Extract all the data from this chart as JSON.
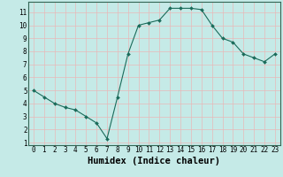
{
  "x": [
    0,
    1,
    2,
    3,
    4,
    5,
    6,
    7,
    8,
    9,
    10,
    11,
    12,
    13,
    14,
    15,
    16,
    17,
    18,
    19,
    20,
    21,
    22,
    23
  ],
  "y": [
    5.0,
    4.5,
    4.0,
    3.7,
    3.5,
    3.0,
    2.5,
    1.3,
    4.5,
    7.8,
    10.0,
    10.2,
    10.4,
    11.3,
    11.3,
    11.3,
    11.2,
    10.0,
    9.0,
    8.7,
    7.8,
    7.5,
    7.2,
    7.8
  ],
  "xlabel": "Humidex (Indice chaleur)",
  "line_color": "#1a6b5a",
  "marker_color": "#1a6b5a",
  "bg_color": "#c5eae7",
  "grid_color_v": "#e8b8b8",
  "grid_color_h": "#e8b8b8",
  "xlim": [
    -0.5,
    23.5
  ],
  "ylim": [
    0.8,
    11.8
  ],
  "xticks": [
    0,
    1,
    2,
    3,
    4,
    5,
    6,
    7,
    8,
    9,
    10,
    11,
    12,
    13,
    14,
    15,
    16,
    17,
    18,
    19,
    20,
    21,
    22,
    23
  ],
  "yticks": [
    1,
    2,
    3,
    4,
    5,
    6,
    7,
    8,
    9,
    10,
    11
  ],
  "tick_fontsize": 5.5,
  "xlabel_fontsize": 7.5
}
